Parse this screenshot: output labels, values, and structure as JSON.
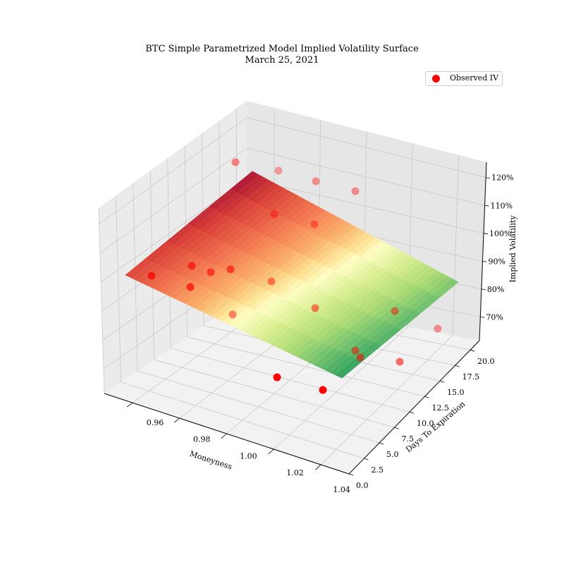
{
  "chart_data": {
    "type": "surface3d",
    "title": [
      "BTC Simple Parametrized Model Implied Volatility Surface",
      "March 25, 2021"
    ],
    "xlabel": "Moneyness",
    "ylabel": "Days To Expiration",
    "zlabel": "Implied Volatility",
    "x_ticks": [
      "0.96",
      "0.98",
      "1.00",
      "1.02",
      "1.04"
    ],
    "y_ticks": [
      "0.0",
      "2.5",
      "5.0",
      "7.5",
      "10.0",
      "12.5",
      "15.0",
      "17.5",
      "20.0"
    ],
    "z_ticks": [
      "70%",
      "80%",
      "90%",
      "100%",
      "110%",
      "120%"
    ],
    "legend": {
      "label": "Observed IV",
      "position": "top-right"
    },
    "colormap": "RdYlGn",
    "surface_color_low": "#1a9850",
    "surface_color_mid": "#ffffbf",
    "surface_color_high": "#a50026",
    "marker_color": "#ff0000"
  }
}
